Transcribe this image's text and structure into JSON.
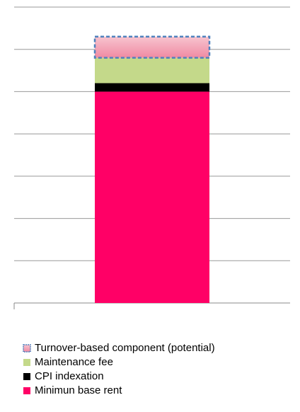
{
  "chart_data": {
    "type": "stacked_bar",
    "categories": [
      null
    ],
    "series": [
      {
        "name": "Minimun base rent",
        "color": "#ff0066",
        "values": [
          5.0
        ]
      },
      {
        "name": "CPI indexation",
        "color": "#000000",
        "values": [
          0.2
        ]
      },
      {
        "name": "Maintenance fee",
        "color": "#c4d98a",
        "values": [
          0.6
        ]
      },
      {
        "name": "Turnover-based component (potential)",
        "color": "#f4a7b9",
        "border": "#4f81bd",
        "dashed": true,
        "values": [
          0.5
        ]
      }
    ],
    "ylim": [
      0,
      7
    ],
    "yticks": [
      0,
      1,
      2,
      3,
      4,
      5,
      6,
      7
    ],
    "grid": true,
    "legend": "bottom"
  }
}
